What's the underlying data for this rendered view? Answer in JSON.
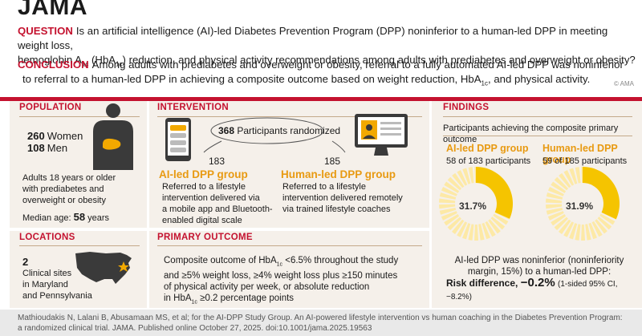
{
  "header": {
    "brand": "JAMA",
    "question_label": "QUESTION",
    "question_text_1": "Is an artificial intelligence (AI)-led Diabetes Prevention Program (DPP) noninferior to a human-led DPP in meeting weight loss,",
    "question_text_2": "hemoglobin A",
    "question_sub": "1c",
    "question_text_3": " (HbA",
    "question_sub2": "1c",
    "question_text_4": ") reduction, and physical activity recommendations among adults with prediabetes and overweight or obesity?",
    "conclusion_label": "CONCLUSION",
    "conclusion_text_1": "Among adults with prediabetes and overweight or obesity, referral to a fully automated AI-led DPP was noninferior",
    "conclusion_text_2": "to referral to a human-led DPP in achieving a composite outcome based on weight reduction, HbA",
    "conclusion_sub": "1c",
    "conclusion_text_3": ", and physical activity.",
    "copyright": "© AMA"
  },
  "population": {
    "title": "POPULATION",
    "women_count": "260",
    "women_label": "Women",
    "men_count": "108",
    "men_label": "Men",
    "desc_1": "Adults 18 years or older",
    "desc_2": "with prediabetes and",
    "desc_3": "overweight or obesity",
    "median_label": "Median age:",
    "median_value": "58",
    "median_unit": "years"
  },
  "locations": {
    "title": "LOCATIONS",
    "count": "2",
    "line_1": "Clinical sites",
    "line_2": "in Maryland",
    "line_3": "and Pennsylvania"
  },
  "intervention": {
    "title": "INTERVENTION",
    "randomized_count": "368",
    "randomized_label": "Participants randomized",
    "ai_count": "183",
    "ai_title": "AI-led DPP group",
    "ai_desc_1": "Referred to a lifestyle",
    "ai_desc_2": "intervention delivered via",
    "ai_desc_3": "a mobile app and Bluetooth-",
    "ai_desc_4": "enabled digital scale",
    "human_count": "185",
    "human_title": "Human-led DPP group",
    "human_desc_1": "Referred to a lifestyle",
    "human_desc_2": "intervention delivered remotely",
    "human_desc_3": "via trained lifestyle coaches"
  },
  "primary_outcome": {
    "title": "PRIMARY OUTCOME",
    "line_1a": "Composite outcome of HbA",
    "line_1sub": "1c",
    "line_1b": " <6.5% throughout the study",
    "line_2": "and ≥5% weight loss, ≥4% weight loss plus ≥150 minutes",
    "line_3": "of physical activity per week, or absolute reduction",
    "line_4a": "in HbA",
    "line_4sub": "1c",
    "line_4b": " ≥0.2 percentage points"
  },
  "findings": {
    "title": "FINDINGS",
    "subtitle": "Participants achieving the composite primary outcome",
    "ai_title": "AI-led DPP group",
    "ai_count_text": "58 of 183 participants",
    "ai_percent_label": "31.7%",
    "ai_percent": 31.7,
    "human_title": "Human-led DPP group",
    "human_count_text": "59 of 185 participants",
    "human_percent_label": "31.9%",
    "human_percent": 31.9,
    "noninf_1": "AI-led DPP was noninferior (noninferiority",
    "noninf_2": "margin, 15%) to a human-led DPP:",
    "rd_label": "Risk difference,",
    "rd_value": "−0.2%",
    "rd_ci": "(1-sided 95% CI, −8.2%)"
  },
  "footer": {
    "citation_1": "Mathioudakis N, Lalani B, Abusamaan MS, et al; for the AI-DPP Study Group. An AI-powered lifestyle intervention vs human coaching in the Diabetes Prevention Program:",
    "citation_2": "a randomized clinical trial. JAMA. Published online October 27, 2025. doi:10.1001/jama.2025.19563"
  },
  "colors": {
    "accent_red": "#c4122f",
    "accent_orange": "#e89a12",
    "donut_fill": "#f5c400",
    "panel_bg": "#f5f0ea"
  }
}
